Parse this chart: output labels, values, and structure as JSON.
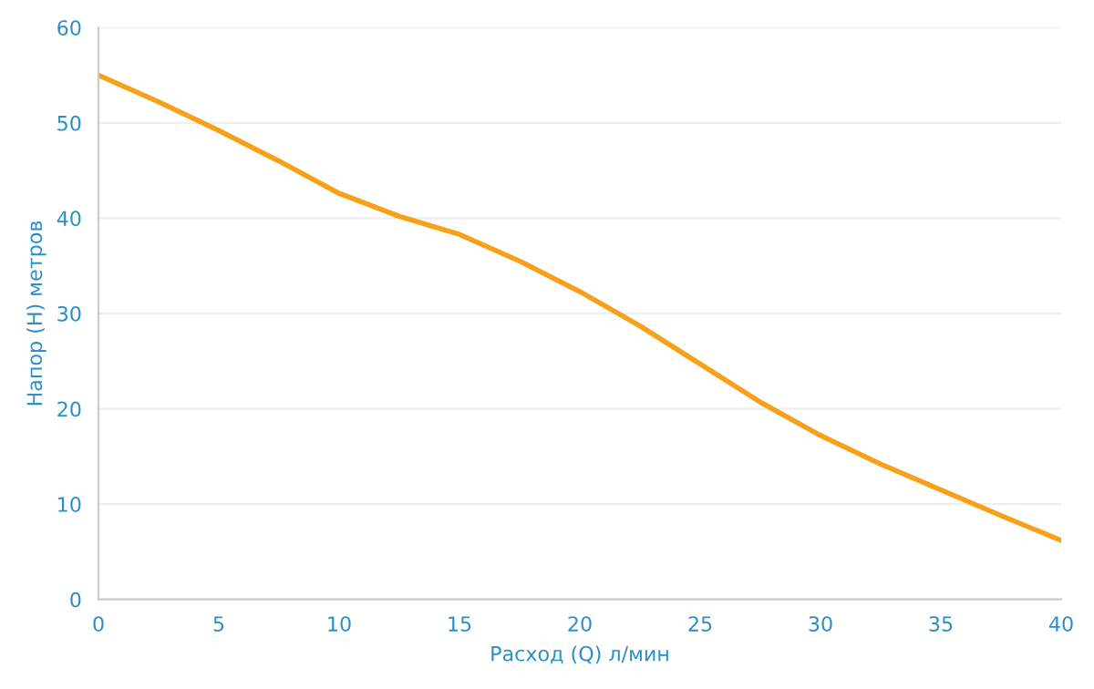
{
  "chart_data": {
    "type": "line",
    "xlabel": "Расход (Q) л/мин",
    "ylabel": "Напор (H) метров",
    "x": [
      0,
      2.5,
      5,
      7.5,
      10,
      12.5,
      15,
      17.5,
      20,
      22.5,
      25,
      27.5,
      30,
      32.5,
      35,
      37.5,
      40
    ],
    "series": [
      {
        "color": "#f7a11a",
        "values": [
          55,
          52.2,
          49.2,
          46,
          42.6,
          40.2,
          38.3,
          35.5,
          32.3,
          28.7,
          24.7,
          20.7,
          17.2,
          14.2,
          11.5,
          8.8,
          6.2
        ]
      }
    ],
    "xlim": [
      0,
      40
    ],
    "xticks": [
      0,
      5,
      10,
      15,
      20,
      25,
      30,
      35,
      40
    ],
    "ylim": [
      0,
      60
    ],
    "yticks": [
      0,
      10,
      20,
      30,
      40,
      50,
      60
    ],
    "grid": "y",
    "legend": false,
    "marker": "none",
    "line_style": "solid"
  }
}
